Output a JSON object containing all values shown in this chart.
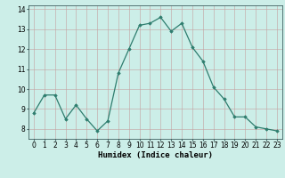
{
  "x": [
    0,
    1,
    2,
    3,
    4,
    5,
    6,
    7,
    8,
    9,
    10,
    11,
    12,
    13,
    14,
    15,
    16,
    17,
    18,
    19,
    20,
    21,
    22,
    23
  ],
  "y": [
    8.8,
    9.7,
    9.7,
    8.5,
    9.2,
    8.5,
    7.9,
    8.4,
    10.8,
    12.0,
    13.2,
    13.3,
    13.6,
    12.9,
    13.3,
    12.1,
    11.4,
    10.1,
    9.5,
    8.6,
    8.6,
    8.1,
    8.0,
    7.9
  ],
  "line_color": "#2e7d6e",
  "marker": "D",
  "marker_size": 1.8,
  "linewidth": 0.9,
  "xlabel": "Humidex (Indice chaleur)",
  "xlabel_fontsize": 6.5,
  "xlim": [
    -0.5,
    23.5
  ],
  "ylim": [
    7.5,
    14.2
  ],
  "yticks": [
    8,
    9,
    10,
    11,
    12,
    13,
    14
  ],
  "xticks": [
    0,
    1,
    2,
    3,
    4,
    5,
    6,
    7,
    8,
    9,
    10,
    11,
    12,
    13,
    14,
    15,
    16,
    17,
    18,
    19,
    20,
    21,
    22,
    23
  ],
  "background_color": "#cceee8",
  "grid_color": "#c4a0a0",
  "tick_fontsize": 5.5,
  "spine_color": "#406060"
}
